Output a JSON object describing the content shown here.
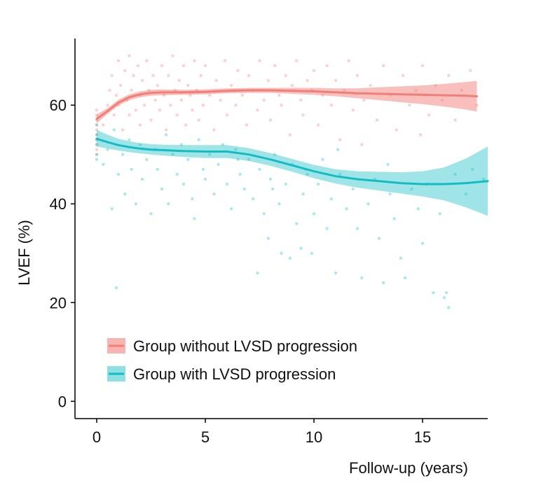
{
  "chart_data": {
    "type": "scatter",
    "title": "",
    "xlabel": "Follow-up (years)",
    "ylabel": "LVEF (%)",
    "xlim": [
      -1,
      18
    ],
    "ylim": [
      -3.5,
      73.5
    ],
    "xticks": [
      0,
      5,
      10,
      15
    ],
    "yticks": [
      0,
      20,
      40,
      60
    ],
    "grid": false,
    "legend_position": "bottom-left",
    "series": [
      {
        "name": "Group without LVSD progression",
        "color": "#F07F78",
        "band_color": "#F8B4B0",
        "smooth": {
          "x": [
            0,
            0.5,
            1,
            1.5,
            2,
            2.5,
            3,
            4,
            5,
            6,
            7,
            8,
            9,
            10,
            11,
            12,
            13,
            14,
            15,
            16,
            17,
            17.5
          ],
          "y": [
            57.2,
            58.8,
            60.5,
            61.6,
            62.2,
            62.5,
            62.6,
            62.6,
            62.7,
            62.9,
            63.0,
            63.0,
            62.9,
            62.8,
            62.6,
            62.4,
            62.3,
            62.2,
            62.1,
            62.0,
            61.9,
            61.8
          ],
          "lower": [
            56.3,
            58.2,
            59.9,
            61.0,
            61.6,
            61.9,
            62.0,
            62.1,
            62.2,
            62.4,
            62.5,
            62.5,
            62.3,
            62.1,
            61.8,
            61.4,
            61.0,
            60.6,
            60.2,
            59.7,
            59.1,
            58.7
          ],
          "upper": [
            58.1,
            59.4,
            61.1,
            62.2,
            62.8,
            63.1,
            63.2,
            63.1,
            63.2,
            63.4,
            63.5,
            63.5,
            63.5,
            63.5,
            63.4,
            63.4,
            63.6,
            63.8,
            64.0,
            64.3,
            64.7,
            64.9
          ]
        },
        "points": [
          [
            0,
            50
          ],
          [
            0,
            51
          ],
          [
            0,
            52
          ],
          [
            0,
            53
          ],
          [
            0,
            54
          ],
          [
            0,
            55
          ],
          [
            0,
            56
          ],
          [
            0,
            57
          ],
          [
            0,
            58
          ],
          [
            0,
            59
          ],
          [
            0.3,
            56
          ],
          [
            0.5,
            60
          ],
          [
            0.6,
            63
          ],
          [
            0.7,
            66
          ],
          [
            0.8,
            58
          ],
          [
            0.9,
            62
          ],
          [
            1.0,
            69
          ],
          [
            1.0,
            60
          ],
          [
            1.1,
            64
          ],
          [
            1.2,
            55
          ],
          [
            1.3,
            67
          ],
          [
            1.4,
            61
          ],
          [
            1.5,
            70
          ],
          [
            1.5,
            58
          ],
          [
            1.6,
            63
          ],
          [
            1.7,
            66
          ],
          [
            1.8,
            59
          ],
          [
            1.9,
            68
          ],
          [
            2.0,
            62
          ],
          [
            2.0,
            56
          ],
          [
            2.1,
            65
          ],
          [
            2.2,
            60
          ],
          [
            2.3,
            69
          ],
          [
            2.4,
            63
          ],
          [
            2.5,
            57
          ],
          [
            2.6,
            66
          ],
          [
            2.7,
            61
          ],
          [
            2.8,
            64
          ],
          [
            2.9,
            59
          ],
          [
            3.0,
            68
          ],
          [
            3.1,
            62
          ],
          [
            3.2,
            55
          ],
          [
            3.3,
            66
          ],
          [
            3.4,
            60
          ],
          [
            3.5,
            70
          ],
          [
            3.6,
            63
          ],
          [
            3.7,
            58
          ],
          [
            3.8,
            65
          ],
          [
            3.9,
            61
          ],
          [
            4.0,
            68
          ],
          [
            4.1,
            56
          ],
          [
            4.2,
            64
          ],
          [
            4.3,
            62
          ],
          [
            4.4,
            59
          ],
          [
            4.5,
            69
          ],
          [
            4.6,
            63
          ],
          [
            4.7,
            57
          ],
          [
            4.8,
            66
          ],
          [
            4.9,
            60
          ],
          [
            5.0,
            68
          ],
          [
            5.2,
            62
          ],
          [
            5.4,
            55
          ],
          [
            5.5,
            65
          ],
          [
            5.7,
            61
          ],
          [
            5.9,
            69
          ],
          [
            6.0,
            58
          ],
          [
            6.2,
            64
          ],
          [
            6.4,
            60
          ],
          [
            6.5,
            67
          ],
          [
            6.7,
            62
          ],
          [
            6.9,
            56
          ],
          [
            7.0,
            66
          ],
          [
            7.2,
            63
          ],
          [
            7.4,
            59
          ],
          [
            7.5,
            69
          ],
          [
            7.7,
            61
          ],
          [
            7.9,
            65
          ],
          [
            8.0,
            57
          ],
          [
            8.2,
            68
          ],
          [
            8.4,
            62
          ],
          [
            8.5,
            60
          ],
          [
            8.7,
            66
          ],
          [
            8.9,
            54
          ],
          [
            9.0,
            64
          ],
          [
            9.2,
            69
          ],
          [
            9.4,
            61
          ],
          [
            9.5,
            58
          ],
          [
            9.7,
            65
          ],
          [
            9.9,
            63
          ],
          [
            10.0,
            67
          ],
          [
            10.2,
            56
          ],
          [
            10.4,
            62
          ],
          [
            10.6,
            68
          ],
          [
            10.8,
            60
          ],
          [
            11.0,
            65
          ],
          [
            11.2,
            53
          ],
          [
            11.4,
            63
          ],
          [
            11.6,
            69
          ],
          [
            11.8,
            59
          ],
          [
            12.0,
            66
          ],
          [
            12.3,
            61
          ],
          [
            12.6,
            64
          ],
          [
            12.9,
            57
          ],
          [
            13.2,
            68
          ],
          [
            13.5,
            62
          ],
          [
            13.8,
            55
          ],
          [
            14.1,
            66
          ],
          [
            14.4,
            60
          ],
          [
            14.7,
            63
          ],
          [
            15.0,
            68
          ],
          [
            15.3,
            58
          ],
          [
            15.6,
            64
          ],
          [
            15.9,
            61
          ],
          [
            16.2,
            66
          ],
          [
            16.5,
            57
          ],
          [
            16.8,
            63
          ],
          [
            17.2,
            67
          ],
          [
            17.5,
            60
          ],
          [
            14.9,
            54
          ],
          [
            12.2,
            52
          ]
        ]
      },
      {
        "name": "Group with LVSD progression",
        "color": "#13BCC3",
        "band_color": "#8EE1E3",
        "smooth": {
          "x": [
            0,
            0.5,
            1,
            1.5,
            2,
            2.5,
            3,
            4,
            5,
            6,
            7,
            8,
            9,
            10,
            11,
            12,
            13,
            14,
            15,
            16,
            17,
            18
          ],
          "y": [
            53.2,
            52.5,
            51.9,
            51.5,
            51.2,
            51.0,
            50.9,
            50.7,
            50.6,
            50.6,
            50.0,
            49.0,
            47.8,
            46.6,
            45.6,
            45.0,
            44.6,
            44.2,
            44.0,
            44.0,
            44.2,
            44.6
          ],
          "lower": [
            51.6,
            51.2,
            50.8,
            50.5,
            50.2,
            50.0,
            49.8,
            49.5,
            49.3,
            49.3,
            48.7,
            47.7,
            46.5,
            45.2,
            44.1,
            43.3,
            42.7,
            42.1,
            41.5,
            40.7,
            39.3,
            37.6
          ],
          "upper": [
            55.0,
            54.0,
            53.2,
            52.7,
            52.3,
            52.1,
            52.0,
            51.9,
            51.9,
            51.9,
            51.3,
            50.3,
            49.1,
            47.9,
            47.0,
            46.6,
            46.5,
            46.4,
            46.6,
            47.4,
            49.2,
            51.6
          ]
        },
        "points": [
          [
            0,
            49
          ],
          [
            0,
            52
          ],
          [
            0,
            54
          ],
          [
            0,
            56
          ],
          [
            0,
            50
          ],
          [
            0,
            53
          ],
          [
            0.3,
            48
          ],
          [
            0.5,
            51
          ],
          [
            0.7,
            39
          ],
          [
            0.8,
            55
          ],
          [
            0.9,
            23
          ],
          [
            1.0,
            46
          ],
          [
            1.2,
            50
          ],
          [
            1.3,
            42
          ],
          [
            1.5,
            53
          ],
          [
            1.6,
            47
          ],
          [
            1.8,
            40
          ],
          [
            2.0,
            52
          ],
          [
            2.1,
            45
          ],
          [
            2.3,
            49
          ],
          [
            2.5,
            38
          ],
          [
            2.7,
            51
          ],
          [
            2.8,
            47
          ],
          [
            3.0,
            43
          ],
          [
            3.2,
            54
          ],
          [
            3.3,
            40
          ],
          [
            3.5,
            50
          ],
          [
            3.7,
            46
          ],
          [
            3.9,
            52
          ],
          [
            4.0,
            44
          ],
          [
            4.2,
            49
          ],
          [
            4.4,
            41
          ],
          [
            4.5,
            37
          ],
          [
            4.7,
            53
          ],
          [
            4.9,
            47
          ],
          [
            5.0,
            45
          ],
          [
            5.2,
            50
          ],
          [
            5.4,
            42
          ],
          [
            5.6,
            48
          ],
          [
            5.8,
            52
          ],
          [
            6.0,
            44
          ],
          [
            6.2,
            39
          ],
          [
            6.4,
            51
          ],
          [
            6.6,
            46
          ],
          [
            6.8,
            43
          ],
          [
            7.0,
            49
          ],
          [
            7.2,
            41
          ],
          [
            7.4,
            26
          ],
          [
            7.5,
            47
          ],
          [
            7.7,
            38
          ],
          [
            7.9,
            33
          ],
          [
            8.0,
            45
          ],
          [
            8.2,
            50
          ],
          [
            8.4,
            40
          ],
          [
            8.5,
            30
          ],
          [
            8.7,
            44
          ],
          [
            8.9,
            29
          ],
          [
            9.0,
            48
          ],
          [
            9.2,
            36
          ],
          [
            9.4,
            31
          ],
          [
            9.5,
            42
          ],
          [
            9.7,
            46
          ],
          [
            9.9,
            30
          ],
          [
            10.0,
            38
          ],
          [
            10.2,
            44
          ],
          [
            10.4,
            49
          ],
          [
            10.6,
            35
          ],
          [
            10.8,
            41
          ],
          [
            11.0,
            26
          ],
          [
            11.2,
            46
          ],
          [
            11.5,
            39
          ],
          [
            11.8,
            43
          ],
          [
            12.0,
            35
          ],
          [
            12.2,
            25
          ],
          [
            12.5,
            40
          ],
          [
            12.8,
            45
          ],
          [
            13.0,
            33
          ],
          [
            13.2,
            24
          ],
          [
            13.5,
            42
          ],
          [
            13.7,
            37
          ],
          [
            14.0,
            29
          ],
          [
            14.2,
            25
          ],
          [
            14.5,
            43
          ],
          [
            14.8,
            39
          ],
          [
            15.0,
            32
          ],
          [
            15.2,
            44
          ],
          [
            15.5,
            22
          ],
          [
            15.8,
            38
          ],
          [
            16.0,
            21
          ],
          [
            16.2,
            19
          ],
          [
            16.5,
            46
          ],
          [
            17.0,
            42
          ],
          [
            17.3,
            47
          ],
          [
            17.8,
            45
          ],
          [
            16.1,
            22
          ],
          [
            13.4,
            48
          ],
          [
            11.1,
            51
          ],
          [
            9.6,
            47
          ],
          [
            8.1,
            43
          ],
          [
            6.5,
            49
          ]
        ]
      }
    ]
  }
}
